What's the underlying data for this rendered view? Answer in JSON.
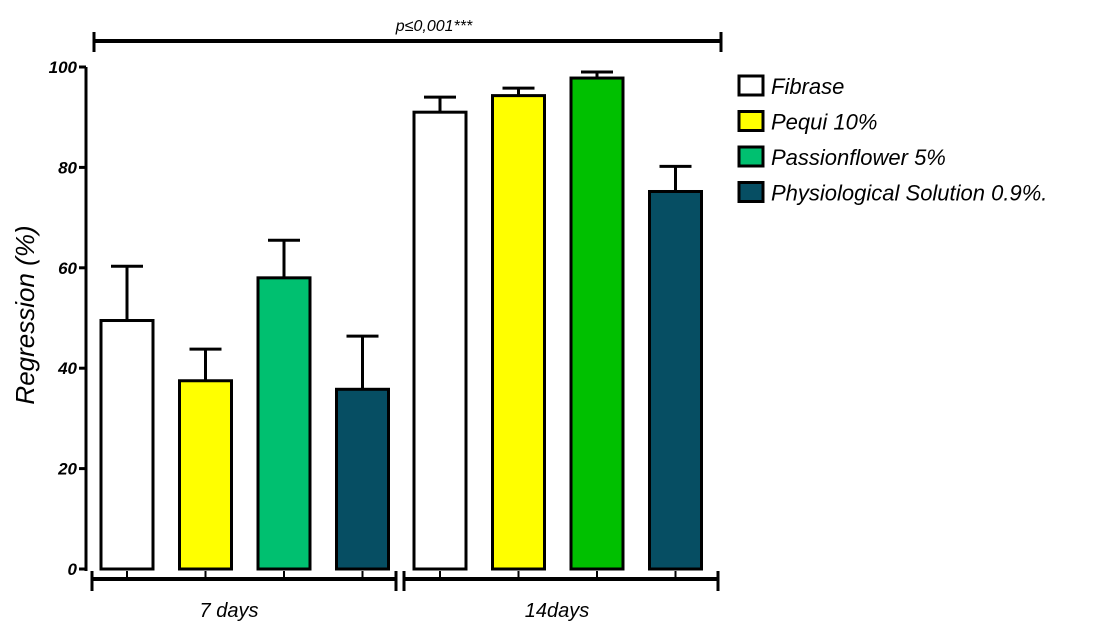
{
  "chart_data": {
    "type": "bar",
    "ylabel": "Regression (%)",
    "ylim": [
      0,
      100
    ],
    "yticks": [
      "0",
      "20",
      "40",
      "60",
      "80",
      "100"
    ],
    "grid": false,
    "legend_position": "right",
    "significance": "p≤0,001***",
    "groups": [
      {
        "label": "7 days"
      },
      {
        "label": "14days"
      }
    ],
    "series": [
      {
        "name": "Fibrase",
        "color": "#ffffff",
        "values": [
          49.5,
          91.0
        ],
        "errors": [
          10.8,
          3.0
        ]
      },
      {
        "name": "Pequi 10%",
        "color": "#ffff00",
        "values": [
          37.5,
          94.3
        ],
        "errors": [
          6.3,
          1.5
        ]
      },
      {
        "name": "Passionflower 5%",
        "color": "#00c070",
        "values": [
          58.0,
          97.8
        ],
        "errors": [
          7.5,
          1.2
        ]
      },
      {
        "name": "Physiological Solution 0.9%.",
        "color": "#064e63",
        "values": [
          35.8,
          75.2
        ],
        "errors": [
          10.6,
          5.0
        ]
      }
    ],
    "fourteen_day_passionflower_color": "#00c000"
  }
}
